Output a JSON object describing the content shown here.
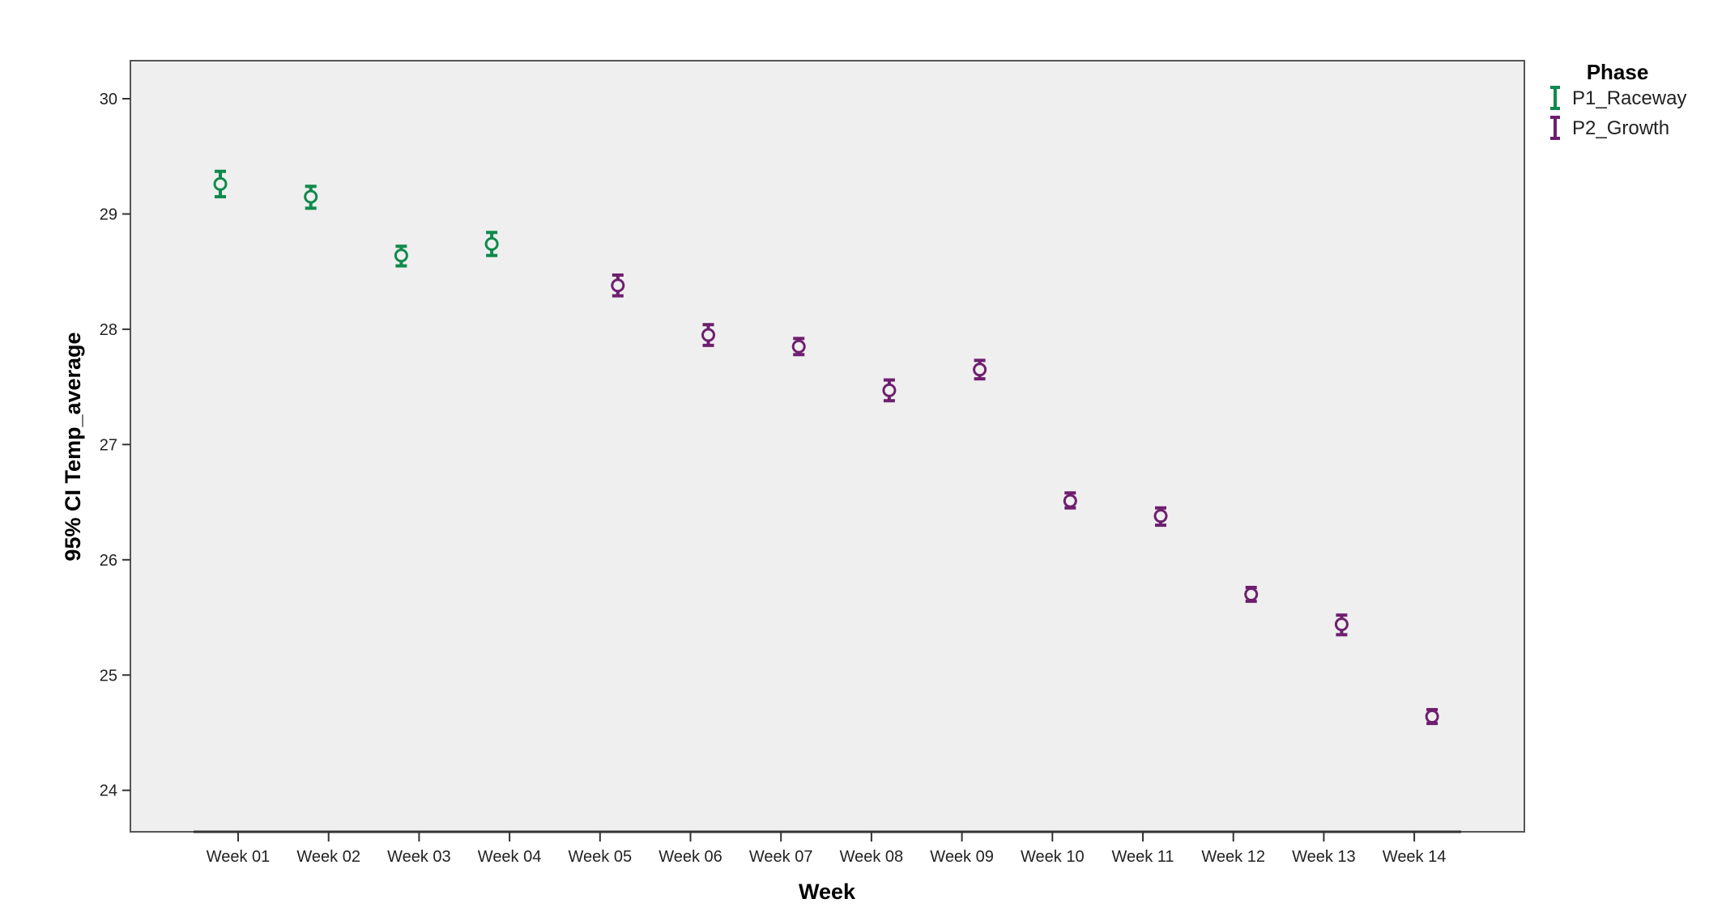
{
  "chart_data": {
    "type": "scatter",
    "subtype": "error-bar",
    "xlabel": "Week",
    "ylabel": "95% CI Temp_average",
    "categories": [
      "Week 01",
      "Week 02",
      "Week 03",
      "Week 04",
      "Week 05",
      "Week 06",
      "Week 07",
      "Week 08",
      "Week 09",
      "Week 10",
      "Week 11",
      "Week 12",
      "Week 13",
      "Week 14"
    ],
    "ylim": [
      23.64,
      30.33
    ],
    "yticks": [
      24,
      25,
      26,
      27,
      28,
      29,
      30
    ],
    "grid": false,
    "legend": {
      "title": "Phase",
      "position": "top-right"
    },
    "series": [
      {
        "name": "P1_Raceway",
        "color": "#0f8a4c",
        "offset": "left",
        "points": [
          {
            "x": "Week 01",
            "mean": 29.26,
            "low": 29.15,
            "high": 29.37
          },
          {
            "x": "Week 02",
            "mean": 29.15,
            "low": 29.05,
            "high": 29.24
          },
          {
            "x": "Week 03",
            "mean": 28.64,
            "low": 28.55,
            "high": 28.72
          },
          {
            "x": "Week 04",
            "mean": 28.74,
            "low": 28.64,
            "high": 28.84
          }
        ]
      },
      {
        "name": "P2_Growth",
        "color": "#6e1f6f",
        "offset": "right",
        "points": [
          {
            "x": "Week 05",
            "mean": 28.38,
            "low": 28.29,
            "high": 28.47
          },
          {
            "x": "Week 06",
            "mean": 27.95,
            "low": 27.86,
            "high": 28.04
          },
          {
            "x": "Week 07",
            "mean": 27.85,
            "low": 27.78,
            "high": 27.92
          },
          {
            "x": "Week 08",
            "mean": 27.47,
            "low": 27.38,
            "high": 27.56
          },
          {
            "x": "Week 09",
            "mean": 27.65,
            "low": 27.57,
            "high": 27.73
          },
          {
            "x": "Week 10",
            "mean": 26.51,
            "low": 26.45,
            "high": 26.58
          },
          {
            "x": "Week 11",
            "mean": 26.38,
            "low": 26.3,
            "high": 26.45
          },
          {
            "x": "Week 12",
            "mean": 25.7,
            "low": 25.64,
            "high": 25.76
          },
          {
            "x": "Week 13",
            "mean": 25.44,
            "low": 25.35,
            "high": 25.52
          },
          {
            "x": "Week 14",
            "mean": 24.64,
            "low": 24.58,
            "high": 24.7
          }
        ]
      }
    ]
  },
  "colors": {
    "plot_background": "#efefef",
    "axis": "#555555"
  }
}
